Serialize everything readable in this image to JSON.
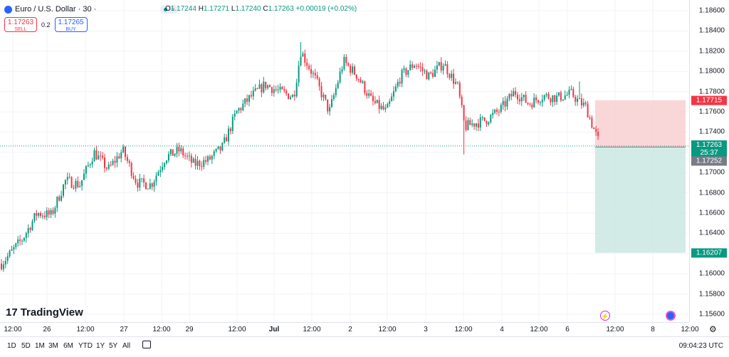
{
  "header": {
    "symbol_title": "Euro / U.S. Dollar · 30 ·",
    "ohlc": {
      "o_label": "O",
      "o": "1.17244",
      "h_label": "H",
      "h": "1.17271",
      "l_label": "L",
      "l": "1.17240",
      "c_label": "C",
      "c": "1.17263",
      "change": "+0.00019 (+0.02%)"
    }
  },
  "trade": {
    "sell_price": "1.17263",
    "sell_label": "SELL",
    "spread": "0.2",
    "buy_price": "1.17265",
    "buy_label": "BUY"
  },
  "price_axis": {
    "ticks": [
      "1.18600",
      "1.18400",
      "1.18200",
      "1.18000",
      "1.17800",
      "1.17600",
      "1.17400",
      "1.17200",
      "1.17000",
      "1.16800",
      "1.16600",
      "1.16400",
      "1.16200",
      "1.16000",
      "1.15800",
      "1.15600"
    ],
    "tick_values": [
      1.186,
      1.184,
      1.182,
      1.18,
      1.178,
      1.176,
      1.174,
      1.172,
      1.17,
      1.168,
      1.166,
      1.164,
      1.162,
      1.16,
      1.158,
      1.156
    ],
    "stop_price": "1.17715",
    "current_price": "1.17263",
    "countdown": "25:37",
    "entry_price": "1.17252",
    "target_price": "1.16207"
  },
  "time_axis": {
    "labels": [
      {
        "text": "12:00",
        "bold": false
      },
      {
        "text": "26",
        "bold": false
      },
      {
        "text": "12:00",
        "bold": false
      },
      {
        "text": "27",
        "bold": false
      },
      {
        "text": "12:00",
        "bold": false
      },
      {
        "text": "29",
        "bold": false
      },
      {
        "text": "12:00",
        "bold": false
      },
      {
        "text": "Jul",
        "bold": true
      },
      {
        "text": "12:00",
        "bold": false
      },
      {
        "text": "2",
        "bold": false
      },
      {
        "text": "12:00",
        "bold": false
      },
      {
        "text": "3",
        "bold": false
      },
      {
        "text": "12:00",
        "bold": false
      },
      {
        "text": "4",
        "bold": false
      },
      {
        "text": "12:00",
        "bold": false
      },
      {
        "text": "6",
        "bold": false
      },
      {
        "text": "12:00",
        "bold": false
      },
      {
        "text": "8",
        "bold": false
      },
      {
        "text": "12:00",
        "bold": false
      }
    ]
  },
  "ranges": [
    "1D",
    "5D",
    "1M",
    "3M",
    "6M",
    "YTD",
    "1Y",
    "5Y",
    "All"
  ],
  "clock": "09:04:23 UTC",
  "logo_text": "TradingView",
  "colors": {
    "up": "#089981",
    "down": "#f23645",
    "stop_zone": "#f7cdd0",
    "target_zone": "#cde9e3",
    "accent": "#2962ff"
  },
  "icons": [
    "tradingview-logo-icon",
    "date-range-icon",
    "settings-icon",
    "flash-icon",
    "globe-icon",
    "status-dot-icon",
    "waves-icon"
  ],
  "chart_data": {
    "type": "candlestick",
    "title": "Euro / U.S. Dollar · 30",
    "interval": "30",
    "ylim": [
      1.156,
      1.187
    ],
    "path": [
      [
        0,
        1.161
      ],
      [
        1,
        1.1618
      ],
      [
        3,
        1.1635
      ],
      [
        5,
        1.166
      ],
      [
        7,
        1.1658
      ],
      [
        9,
        1.1692
      ],
      [
        11,
        1.1688
      ],
      [
        13,
        1.172
      ],
      [
        15,
        1.1703
      ],
      [
        17,
        1.1722
      ],
      [
        19,
        1.169
      ],
      [
        21,
        1.1688
      ],
      [
        23,
        1.1715
      ],
      [
        25,
        1.1722
      ],
      [
        27,
        1.1708
      ],
      [
        29,
        1.1712
      ],
      [
        31,
        1.1725
      ],
      [
        33,
        1.176
      ],
      [
        35,
        1.1775
      ],
      [
        37,
        1.1787
      ],
      [
        39,
        1.178
      ],
      [
        41,
        1.1775
      ],
      [
        42,
        1.182
      ],
      [
        44,
        1.1793
      ],
      [
        46,
        1.176
      ],
      [
        48,
        1.181
      ],
      [
        50,
        1.1795
      ],
      [
        52,
        1.177
      ],
      [
        54,
        1.176
      ],
      [
        56,
        1.1795
      ],
      [
        58,
        1.1808
      ],
      [
        60,
        1.1795
      ],
      [
        62,
        1.1808
      ],
      [
        64,
        1.1785
      ],
      [
        65,
        1.1745
      ],
      [
        66,
        1.1748
      ],
      [
        68,
        1.1752
      ],
      [
        70,
        1.1762
      ],
      [
        72,
        1.178
      ],
      [
        74,
        1.1768
      ],
      [
        76,
        1.1776
      ],
      [
        78,
        1.1774
      ],
      [
        80,
        1.1778
      ],
      [
        81,
        1.177
      ],
      [
        82,
        1.1765
      ],
      [
        83,
        1.1745
      ],
      [
        84,
        1.1727
      ]
    ],
    "wicks": [
      [
        65,
        1.1718
      ],
      [
        42,
        1.1829
      ],
      [
        81,
        1.179
      ]
    ]
  }
}
